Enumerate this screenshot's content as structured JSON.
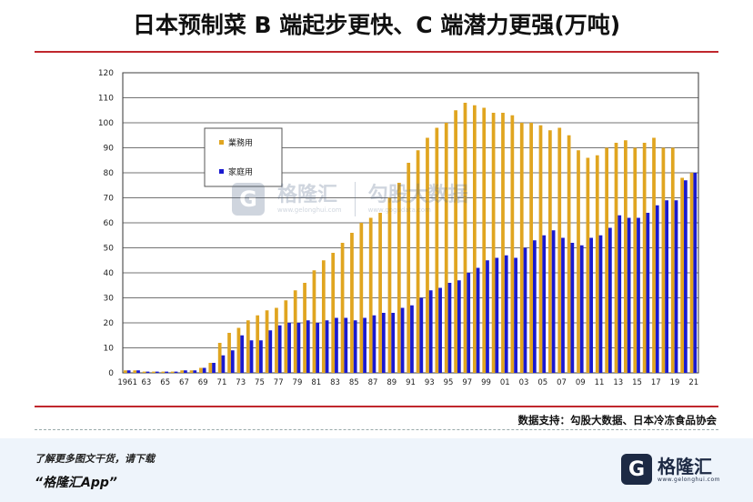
{
  "title": "日本预制菜 B 端起步更快、C 端潜力更强(万吨)",
  "source": "数据支持：勾股大数据、日本冷冻食品协会",
  "footer": {
    "line1": "了解更多图文干货，请下载",
    "line2": "“格隆汇App”"
  },
  "logo": {
    "text": "格隆汇",
    "sub": "www.gelonghui.com",
    "mark": "G"
  },
  "watermark": {
    "brand1": "格隆汇",
    "brand1_sub": "www.gelonghui.com",
    "brand2": "勾股大数据",
    "brand2_sub": "www.gogudata.com"
  },
  "colors": {
    "business": "#e0a520",
    "home": "#1a1ad0",
    "accent": "#c0272d",
    "plot_bg": "#ffffff"
  },
  "chart_data": {
    "type": "bar",
    "title": "日本预制菜 B 端起步更快、C 端潜力更强(万吨)",
    "ylim": [
      0,
      120
    ],
    "yticks": [
      0,
      10,
      20,
      30,
      40,
      50,
      60,
      70,
      80,
      90,
      100,
      110,
      120
    ],
    "grid": true,
    "legend_position": "upper-left",
    "x_tick_labels": [
      "1961",
      "63",
      "65",
      "67",
      "69",
      "71",
      "73",
      "75",
      "77",
      "79",
      "81",
      "83",
      "85",
      "87",
      "89",
      "91",
      "93",
      "95",
      "97",
      "99",
      "01",
      "03",
      "05",
      "07",
      "09",
      "11",
      "13",
      "15",
      "17",
      "19",
      "21"
    ],
    "categories": [
      "1961",
      "1962",
      "1963",
      "1964",
      "1965",
      "1966",
      "1967",
      "1968",
      "1969",
      "1970",
      "1971",
      "1972",
      "1973",
      "1974",
      "1975",
      "1976",
      "1977",
      "1978",
      "1979",
      "1980",
      "1981",
      "1982",
      "1983",
      "1984",
      "1985",
      "1986",
      "1987",
      "1988",
      "1989",
      "1990",
      "1991",
      "1992",
      "1993",
      "1994",
      "1995",
      "1996",
      "1997",
      "1998",
      "1999",
      "2000",
      "2001",
      "2002",
      "2003",
      "2004",
      "2005",
      "2006",
      "2007",
      "2008",
      "2009",
      "2010",
      "2011",
      "2012",
      "2013",
      "2014",
      "2015",
      "2016",
      "2017",
      "2018",
      "2019",
      "2020",
      "2021"
    ],
    "series": [
      {
        "name": "業務用",
        "values": [
          1,
          1,
          0.5,
          0.5,
          0.5,
          0.5,
          1,
          1,
          2,
          4,
          12,
          16,
          18,
          21,
          23,
          25,
          26,
          29,
          33,
          36,
          41,
          45,
          48,
          52,
          56,
          60,
          62,
          64,
          70,
          76,
          84,
          89,
          94,
          98,
          100,
          105,
          108,
          107,
          106,
          104,
          104,
          103,
          100,
          100,
          99,
          97,
          98,
          95,
          89,
          86,
          87,
          90,
          92,
          93,
          90,
          92,
          94,
          90,
          90,
          78,
          80
        ]
      },
      {
        "name": "家庭用",
        "values": [
          1,
          1,
          0.5,
          0.5,
          0.5,
          0.5,
          1,
          1,
          2,
          4,
          7,
          9,
          15,
          13,
          13,
          17,
          19,
          20,
          20,
          21,
          20,
          21,
          22,
          22,
          21,
          22,
          23,
          24,
          24,
          26,
          27,
          30,
          33,
          34,
          36,
          37,
          40,
          42,
          45,
          46,
          47,
          46,
          50,
          53,
          55,
          57,
          54,
          52,
          51,
          54,
          55,
          58,
          63,
          62,
          62,
          64,
          67,
          69,
          69,
          77,
          80
        ]
      }
    ]
  }
}
